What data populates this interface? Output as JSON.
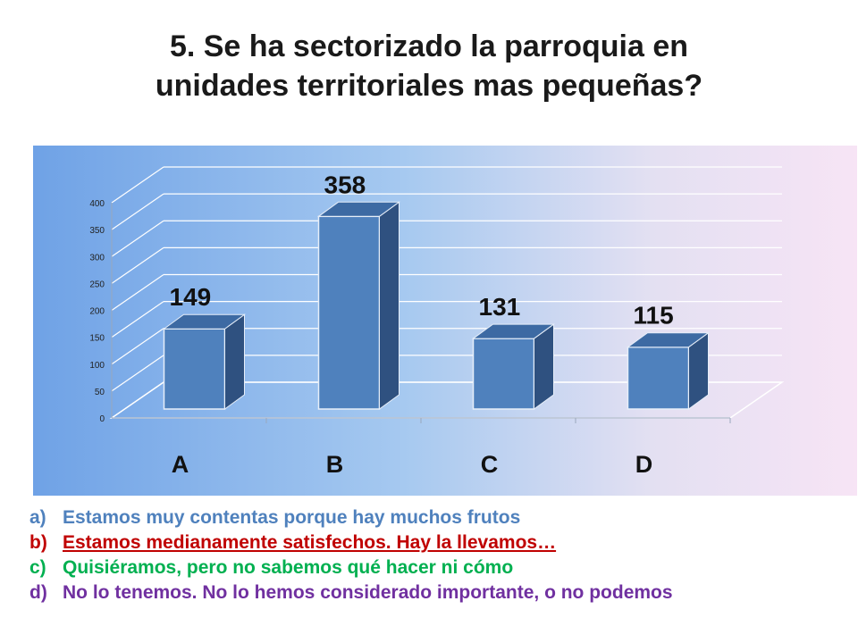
{
  "title_line1": "5. Se ha sectorizado la parroquia en",
  "title_line2": "unidades territoriales mas pequeñas?",
  "chart_data": {
    "type": "bar",
    "categories": [
      "A",
      "B",
      "C",
      "D"
    ],
    "values": [
      149,
      358,
      131,
      115
    ],
    "ylim": [
      0,
      400
    ],
    "yticks": [
      0,
      50,
      100,
      150,
      200,
      250,
      300,
      350,
      400
    ],
    "grid": true,
    "bar_color": "#4f81bd",
    "bar_side_color": "#2f5180"
  },
  "answers": [
    {
      "letter": "a)",
      "text": "Estamos muy contentas porque hay muchos frutos",
      "color": "#4f81bd"
    },
    {
      "letter": "b)",
      "text": "Estamos medianamente satisfechos. Hay la llevamos…",
      "color": "#c00000"
    },
    {
      "letter": "c)",
      "text": "Quisiéramos, pero no sabemos qué hacer ni cómo",
      "color": "#00b050"
    },
    {
      "letter": "d)",
      "text": "No lo tenemos. No lo hemos considerado importante, o no podemos",
      "color": "#7030a0"
    }
  ]
}
